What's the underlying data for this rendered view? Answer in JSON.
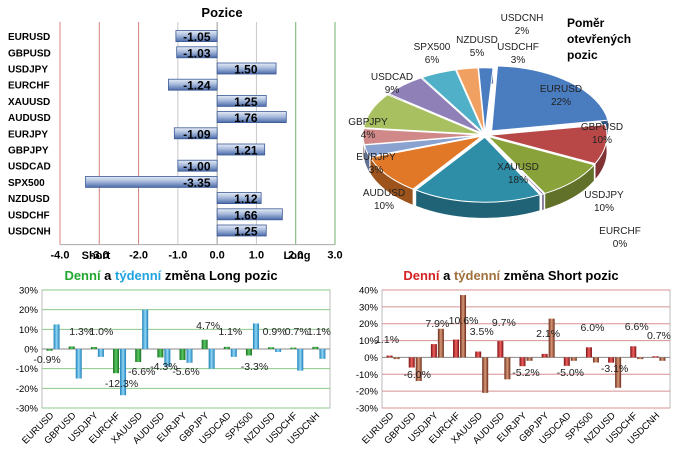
{
  "colors": {
    "long_green": "#22a830",
    "weekly_blue": "#1fa3e0",
    "short_red": "#d42020",
    "weekly_brown": "#a0703c"
  },
  "chart_data": [
    {
      "type": "bar",
      "orientation": "horizontal",
      "title": "Pozice",
      "categories": [
        "EURUSD",
        "GBPUSD",
        "USDJPY",
        "EURCHF",
        "XAUUSD",
        "AUDUSD",
        "EURJPY",
        "GBPJPY",
        "USDCAD",
        "SPX500",
        "NZDUSD",
        "USDCHF",
        "USDCNH"
      ],
      "values": [
        -1.05,
        -1.03,
        1.5,
        -1.24,
        1.25,
        1.76,
        -1.09,
        1.21,
        -1.0,
        -3.35,
        1.12,
        1.66,
        1.25
      ],
      "value_labels": [
        "-1.05",
        "-1.03",
        "1.50",
        "-1.24",
        "1.25",
        "1.76",
        "-1.09",
        "1.21",
        "-1.00",
        "-3.35",
        "1.12",
        "1.66",
        "1.25"
      ],
      "xlim": [
        -4.0,
        3.0
      ],
      "xticks": [
        -4.0,
        -3.0,
        -2.0,
        -1.0,
        0.0,
        1.0,
        2.0,
        3.0
      ],
      "xtick_labels": [
        "-4.0",
        "-3.0",
        "-2.0",
        "-1.0",
        "0.0",
        "1.0",
        "2.0",
        "3.0"
      ],
      "annotations": {
        "short": "Short",
        "long": "Long"
      }
    },
    {
      "type": "pie",
      "title": [
        "Poměr",
        "otevřených",
        "pozic"
      ],
      "labels": [
        "EURUSD",
        "GBPUSD",
        "USDJPY",
        "EURCHF",
        "XAUUSD",
        "AUDUSD",
        "EURJPY",
        "GBPJPY",
        "USDCAD",
        "SPX500",
        "NZDUSD",
        "USDCHF",
        "USDCNH"
      ],
      "values": [
        22,
        10,
        10,
        0,
        18,
        10,
        3,
        4,
        9,
        6,
        5,
        3,
        2
      ],
      "value_labels": [
        "22%",
        "10%",
        "10%",
        "0%",
        "18%",
        "10%",
        "3%",
        "4%",
        "9%",
        "6%",
        "5%",
        "3%",
        "2%"
      ],
      "colors": [
        "#4a7cc0",
        "#b84848",
        "#8aa23a",
        "#6c58a0",
        "#2e8ea8",
        "#e07828",
        "#8aa2d0",
        "#d08888",
        "#a8c060",
        "#9080b8",
        "#50b0c8",
        "#f0a060",
        "#4a7cc0"
      ]
    },
    {
      "type": "bar",
      "title_parts": [
        "Denní",
        " a ",
        "týdenní",
        " změna Long pozic"
      ],
      "categories": [
        "EURUSD",
        "GBPUSD",
        "USDJPY",
        "EURCHF",
        "XAUUSD",
        "AUDUSD",
        "EURJPY",
        "GBPJPY",
        "USDCAD",
        "SPX500",
        "NZDUSD",
        "USDCHF",
        "USDCNH"
      ],
      "series": [
        {
          "values": [
            -0.9,
            1.3,
            1.0,
            -12.3,
            -6.6,
            -4.3,
            -5.6,
            4.7,
            1.1,
            -3.3,
            0.9,
            0.7,
            1.1
          ],
          "labels": [
            "-0.9%",
            "1.3%",
            "1.0%",
            "-12.3%",
            "-6.6%",
            "-4.3%",
            "-5.6%",
            "4.7%",
            "1.1%",
            "-3.3%",
            "0.9%",
            "0.7%",
            "1.1%"
          ]
        },
        {
          "values": [
            12.5,
            -15,
            -4,
            -23.5,
            20,
            -9,
            -7,
            -10,
            -4,
            13,
            -1.5,
            -11,
            -5
          ]
        }
      ],
      "ylim": [
        -30,
        30
      ],
      "yticks": [
        -30,
        -20,
        -10,
        0,
        10,
        20,
        30
      ],
      "ytick_labels": [
        "-30%",
        "-20%",
        "-10%",
        "0%",
        "10%",
        "20%",
        "30%"
      ]
    },
    {
      "type": "bar",
      "title_parts": [
        "Denní",
        " a ",
        "týdenní",
        " změna Short pozic"
      ],
      "categories": [
        "EURUSD",
        "GBPUSD",
        "USDJPY",
        "EURCHF",
        "XAUUSD",
        "AUDUSD",
        "EURJPY",
        "GBPJPY",
        "USDCAD",
        "SPX500",
        "NZDUSD",
        "USDCHF",
        "USDCNH"
      ],
      "series": [
        {
          "values": [
            1.1,
            -6.0,
            7.9,
            10.6,
            3.5,
            9.7,
            -5.2,
            2.1,
            -5.0,
            6.0,
            -3.1,
            6.6,
            0.7
          ],
          "labels": [
            "1.1%",
            "-6.0%",
            "7.9%",
            "10.6%",
            "3.5%",
            "9.7%",
            "-5.2%",
            "2.1%",
            "-5.0%",
            "6.0%",
            "-3.1%",
            "6.6%",
            "0.7%"
          ]
        },
        {
          "values": [
            -1,
            -14,
            17,
            37,
            -21,
            -13,
            -2,
            23,
            -2,
            -3,
            -18,
            -1,
            -2
          ]
        }
      ],
      "ylim": [
        -30,
        40
      ],
      "yticks": [
        -30,
        -20,
        -10,
        0,
        10,
        20,
        30,
        40
      ],
      "ytick_labels": [
        "-30%",
        "-20%",
        "-10%",
        "0%",
        "10%",
        "20%",
        "30%",
        "40%"
      ]
    }
  ]
}
